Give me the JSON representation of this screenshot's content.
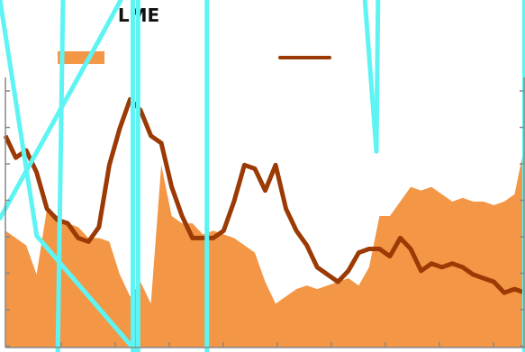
{
  "chart_data": {
    "type": "area",
    "title": "LME",
    "legend_position": "top",
    "grid": false,
    "colors": {
      "area": "#f39645",
      "line": "#9b3a05",
      "overlay": "#5ef4f4",
      "axis": "#888888"
    },
    "x": [
      0,
      2,
      4,
      6,
      8,
      10,
      12,
      14,
      16,
      18,
      20,
      22,
      24,
      26,
      28,
      30,
      32,
      34,
      36,
      38,
      40,
      42,
      44,
      46,
      48,
      50,
      52,
      54,
      56,
      58,
      60,
      62,
      64,
      66,
      68,
      70,
      72,
      74,
      76,
      78,
      80,
      82,
      84,
      86,
      88,
      90,
      92,
      94,
      96,
      98,
      100
    ],
    "series": [
      {
        "kind": "area",
        "values": [
          32,
          30,
          28,
          20,
          38,
          36,
          34,
          33,
          30,
          30,
          29,
          20,
          14,
          18,
          12,
          50,
          36,
          34,
          34,
          31,
          32,
          31,
          30,
          28,
          26,
          18,
          12,
          14,
          16,
          17,
          16,
          17,
          18,
          19,
          17,
          22,
          36,
          36,
          40,
          44,
          43,
          44,
          42,
          40,
          41,
          40,
          40,
          39,
          40,
          42,
          56
        ]
      },
      {
        "kind": "line",
        "values": [
          58,
          52,
          54,
          48,
          38,
          35,
          34,
          30,
          29,
          33,
          50,
          60,
          68,
          65,
          58,
          56,
          44,
          36,
          30,
          30,
          30,
          32,
          40,
          50,
          49,
          43,
          50,
          38,
          32,
          28,
          22,
          20,
          18,
          21,
          26,
          27,
          27,
          25,
          30,
          27,
          21,
          23,
          22,
          23,
          22,
          20,
          19,
          18,
          15,
          16,
          15
        ]
      }
    ],
    "ylim": [
      0,
      74
    ],
    "overlay_segments": [
      [
        [
          0.0,
          0.0
        ],
        [
          0.07,
          0.67
        ]
      ],
      [
        [
          0.07,
          0.67
        ],
        [
          0.26,
          1.0
        ]
      ],
      [
        [
          0.0,
          0.62
        ],
        [
          0.19,
          0.11
        ]
      ],
      [
        [
          0.19,
          0.11
        ],
        [
          0.23,
          0.0
        ]
      ],
      [
        [
          0.11,
          1.0
        ],
        [
          0.12,
          0.0
        ]
      ],
      [
        [
          0.253,
          1.0
        ],
        [
          0.253,
          0.0
        ]
      ],
      [
        [
          0.263,
          1.0
        ],
        [
          0.263,
          0.0
        ]
      ],
      [
        [
          0.394,
          1.0
        ],
        [
          0.394,
          0.0
        ]
      ],
      [
        [
          0.695,
          0.0
        ],
        [
          0.717,
          0.43
        ]
      ],
      [
        [
          0.717,
          0.43
        ],
        [
          0.72,
          0.0
        ]
      ],
      [
        [
          0.999,
          1.0
        ],
        [
          0.999,
          0.0
        ]
      ]
    ],
    "axis_ticks": {
      "x_count": 10,
      "y_count": 8
    }
  }
}
